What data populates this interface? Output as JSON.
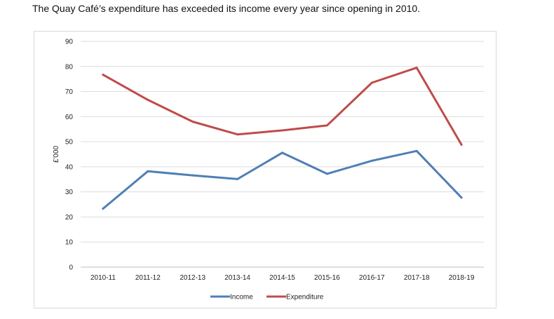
{
  "caption": "The Quay Café’s expenditure has exceeded its income every year since opening in 2010.",
  "chart_data": {
    "type": "line",
    "title": "",
    "xlabel": "",
    "ylabel": "£'000",
    "ylim": [
      0,
      90
    ],
    "yticks": [
      0,
      10,
      20,
      30,
      40,
      50,
      60,
      70,
      80,
      90
    ],
    "grid": true,
    "legend_position": "bottom",
    "categories": [
      "2010-11",
      "2011-12",
      "2012-13",
      "2013-14",
      "2014-15",
      "2015-16",
      "2016-17",
      "2017-18",
      "2018-19"
    ],
    "series": [
      {
        "name": "Income",
        "color": "#4f7fb5",
        "values": [
          23.3,
          38.2,
          36.6,
          35.1,
          45.6,
          37.2,
          42.4,
          46.3,
          27.7
        ]
      },
      {
        "name": "Expenditure",
        "color": "#bf4c4a",
        "values": [
          76.7,
          66.7,
          58.0,
          52.9,
          54.5,
          56.5,
          73.5,
          79.5,
          48.8
        ]
      }
    ]
  }
}
